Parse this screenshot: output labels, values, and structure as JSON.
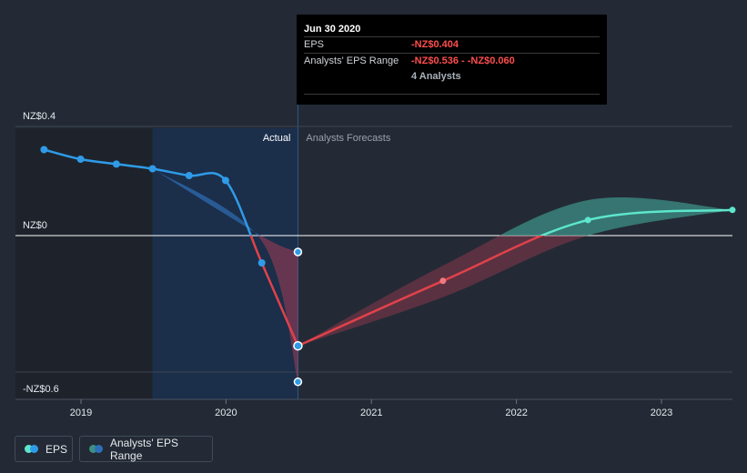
{
  "colors": {
    "background": "#232a35",
    "eps_actual": "#2f9be8",
    "eps_forecast_negative": "#e0424a",
    "eps_forecast_positive": "#5ee6cd",
    "range_actual": "#2e6fb8",
    "range_negative": "#c4405a",
    "range_positive": "#3e8f86",
    "tooltip_negative": "#ff4d4d"
  },
  "tooltip": {
    "date": "Jun 30 2020",
    "eps_label": "EPS",
    "eps_value": "-NZ$0.404",
    "range_label": "Analysts' EPS Range",
    "range_value": "-NZ$0.536 - -NZ$0.060",
    "analysts": "4 Analysts"
  },
  "chart_data": {
    "type": "line",
    "y_unit": "NZ$",
    "ylim": [
      -0.6,
      0.4
    ],
    "y_tick_labels": [
      "NZ$0.4",
      "NZ$0",
      "-NZ$0.6"
    ],
    "x_tick_labels": [
      "2019",
      "2020",
      "2021",
      "2022",
      "2023"
    ],
    "section_labels": {
      "actual": "Actual",
      "forecast": "Analysts Forecasts"
    },
    "eps_actual": [
      {
        "date": "2018-09-30",
        "eps": 0.315
      },
      {
        "date": "2018-12-31",
        "eps": 0.28
      },
      {
        "date": "2019-03-31",
        "eps": 0.262
      },
      {
        "date": "2019-06-30",
        "eps": 0.245
      },
      {
        "date": "2019-09-30",
        "eps": 0.22
      },
      {
        "date": "2019-12-31",
        "eps": 0.202
      },
      {
        "date": "2020-03-31",
        "eps": -0.1
      },
      {
        "date": "2020-06-30",
        "eps": -0.404
      }
    ],
    "eps_range_actual": [
      {
        "date": "2019-06-30",
        "low": 0.245,
        "high": 0.245
      },
      {
        "date": "2020-03-31",
        "low": -0.02,
        "high": -0.002
      },
      {
        "date": "2020-06-30",
        "low": -0.536,
        "high": -0.06
      }
    ],
    "eps_forecast": [
      {
        "date": "2020-06-30",
        "eps": -0.404
      },
      {
        "date": "2021-06-30",
        "eps": -0.166
      },
      {
        "date": "2022-06-30",
        "eps": 0.057
      },
      {
        "date": "2023-06-30",
        "eps": 0.094
      }
    ],
    "eps_range_forecast": [
      {
        "date": "2020-06-30",
        "low": -0.404,
        "high": -0.404
      },
      {
        "date": "2021-06-30",
        "low": -0.226,
        "high": -0.11
      },
      {
        "date": "2022-06-30",
        "low": 0.0,
        "high": 0.13
      },
      {
        "date": "2023-06-30",
        "low": 0.094,
        "high": 0.094
      }
    ],
    "legend": [
      "EPS",
      "Analysts' EPS Range"
    ]
  }
}
